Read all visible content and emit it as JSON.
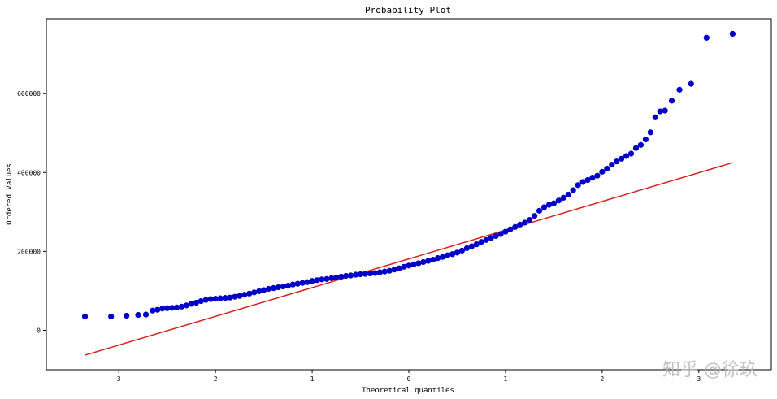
{
  "chart_data": {
    "type": "scatter",
    "title": "Probability Plot",
    "xlabel": "Theoretical quantiles",
    "ylabel": "Ordered Values",
    "xlim": [
      -3.75,
      3.75
    ],
    "ylim": [
      -100000,
      790000
    ],
    "x_ticks": [
      -3,
      -2,
      -1,
      0,
      1,
      2,
      3
    ],
    "x_tick_labels": [
      "3",
      "2",
      "1",
      "0",
      "1",
      "2",
      "3"
    ],
    "y_ticks": [
      0,
      200000,
      400000,
      600000
    ],
    "y_tick_labels": [
      "0",
      "200000",
      "400000",
      "600000"
    ],
    "grid": false,
    "legend": "none",
    "colors": {
      "points": "#0000c8",
      "fit_line": "#d62020",
      "axes": "#000000"
    },
    "fit_line": {
      "x": [
        -3.35,
        3.35
      ],
      "y": [
        -63000,
        425000
      ]
    },
    "series": [
      {
        "x": [
          -3.35,
          -3.08,
          -2.92,
          -2.8,
          -2.72,
          -2.65,
          -2.6,
          -2.55,
          -2.5,
          -2.45,
          -2.4,
          -2.35,
          -2.3,
          -2.25,
          -2.2,
          -2.15,
          -2.1,
          -2.05,
          -2.0,
          -1.95,
          -1.9,
          -1.85,
          -1.8,
          -1.75,
          -1.7,
          -1.65,
          -1.6,
          -1.55,
          -1.5,
          -1.45,
          -1.4,
          -1.35,
          -1.3,
          -1.25,
          -1.2,
          -1.15,
          -1.1,
          -1.05,
          -1.0,
          -0.95,
          -0.9,
          -0.85,
          -0.8,
          -0.75,
          -0.7,
          -0.65,
          -0.6,
          -0.55,
          -0.5,
          -0.45,
          -0.4,
          -0.35,
          -0.3,
          -0.25,
          -0.2,
          -0.15,
          -0.1,
          -0.05,
          0.0,
          0.05,
          0.1,
          0.15,
          0.2,
          0.25,
          0.3,
          0.35,
          0.4,
          0.45,
          0.5,
          0.55,
          0.6,
          0.65,
          0.7,
          0.75,
          0.8,
          0.85,
          0.9,
          0.95,
          1.0,
          1.05,
          1.1,
          1.15,
          1.2,
          1.25,
          1.3,
          1.35,
          1.4,
          1.45,
          1.5,
          1.55,
          1.6,
          1.65,
          1.7,
          1.75,
          1.8,
          1.85,
          1.9,
          1.95,
          2.0,
          2.05,
          2.1,
          2.15,
          2.2,
          2.25,
          2.3,
          2.35,
          2.4,
          2.45,
          2.5,
          2.55,
          2.6,
          2.65,
          2.72,
          2.8,
          2.92,
          3.08,
          3.35
        ],
        "y": [
          35000,
          35000,
          37000,
          39000,
          40000,
          50000,
          52000,
          55000,
          56000,
          57000,
          58000,
          60000,
          63000,
          67000,
          70000,
          74000,
          77000,
          79000,
          80000,
          81000,
          82000,
          83000,
          85000,
          87000,
          90000,
          93000,
          96000,
          99000,
          102000,
          105000,
          107000,
          109000,
          111000,
          113000,
          116000,
          118000,
          120000,
          122000,
          125000,
          127000,
          129000,
          130000,
          132000,
          134000,
          136000,
          138000,
          139000,
          141000,
          142000,
          143000,
          144000,
          145000,
          147000,
          149000,
          151000,
          154000,
          157000,
          161000,
          164000,
          167000,
          170000,
          173000,
          176000,
          179000,
          183000,
          186000,
          190000,
          193000,
          197000,
          202000,
          208000,
          213000,
          218000,
          224000,
          229000,
          234000,
          239000,
          244000,
          250000,
          256000,
          262000,
          268000,
          273000,
          280000,
          290000,
          303000,
          312000,
          318000,
          322000,
          329000,
          336000,
          344000,
          355000,
          368000,
          376000,
          381000,
          387000,
          392000,
          402000,
          410000,
          420000,
          428000,
          435000,
          442000,
          448000,
          462000,
          470000,
          484000,
          502000,
          540000,
          555000,
          557000,
          582000,
          610000,
          625000,
          742000,
          752000
        ]
      }
    ]
  },
  "watermark": "知乎 @徐玖"
}
